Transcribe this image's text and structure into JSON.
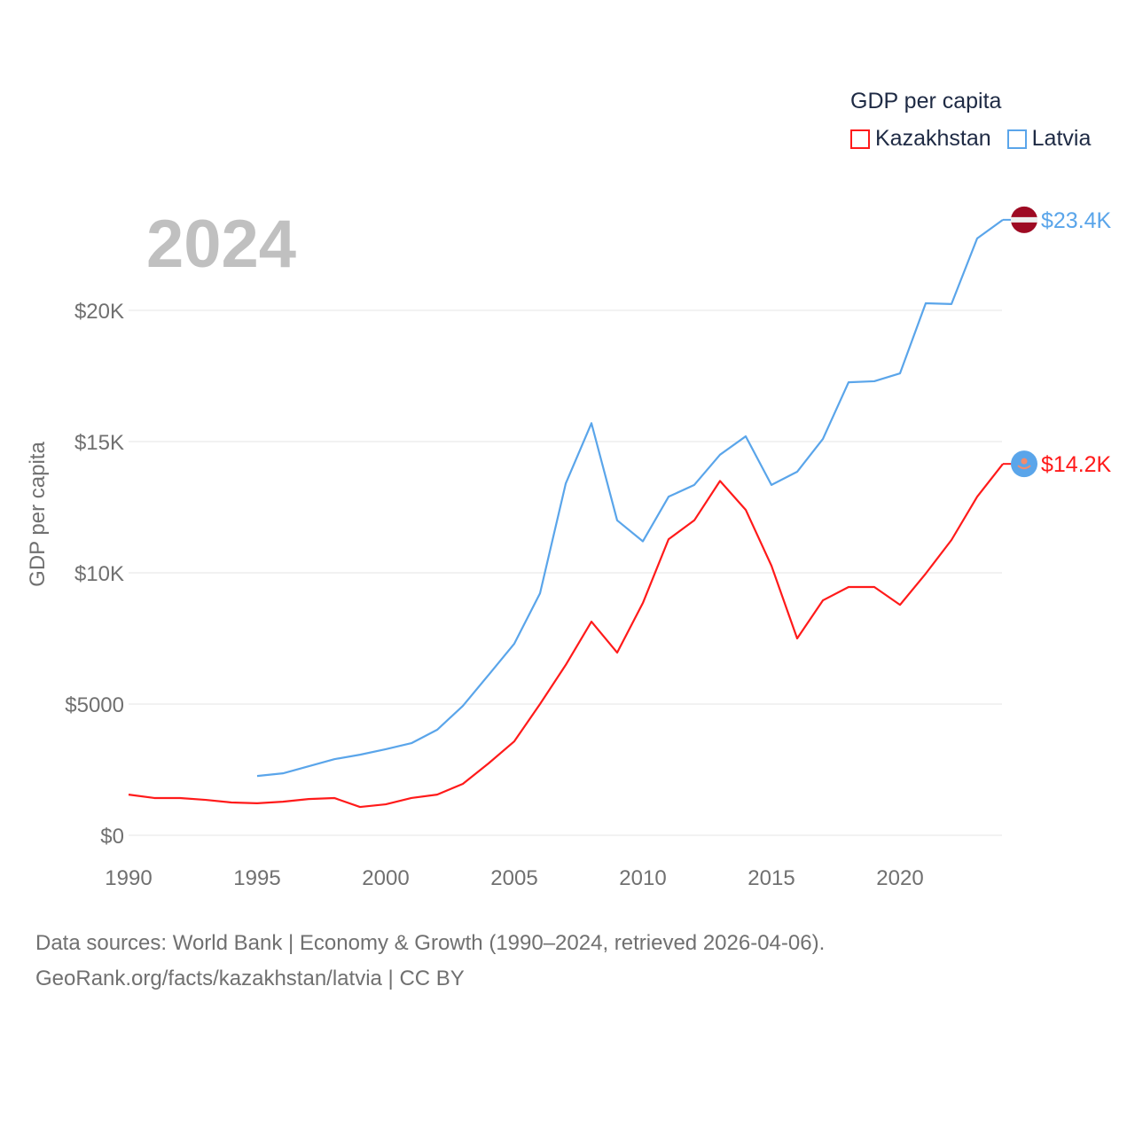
{
  "chart_data": {
    "type": "line",
    "legend_title": "GDP per capita",
    "ylabel": "GDP per capita",
    "xlabel": "",
    "year_label": "2024",
    "ylim": [
      0,
      25000
    ],
    "xlim": [
      1990,
      2024
    ],
    "grid": true,
    "legend_placement": "top-right",
    "y_ticks": [
      {
        "value": 0,
        "label": "$0"
      },
      {
        "value": 5000,
        "label": "$5000"
      },
      {
        "value": 10000,
        "label": "$10K"
      },
      {
        "value": 15000,
        "label": "$15K"
      },
      {
        "value": 20000,
        "label": "$20K"
      }
    ],
    "x_ticks": [
      {
        "value": 1990,
        "label": "1990"
      },
      {
        "value": 1995,
        "label": "1995"
      },
      {
        "value": 2000,
        "label": "2000"
      },
      {
        "value": 2005,
        "label": "2005"
      },
      {
        "value": 2010,
        "label": "2010"
      },
      {
        "value": 2015,
        "label": "2015"
      },
      {
        "value": 2020,
        "label": "2020"
      }
    ],
    "series": [
      {
        "name": "Kazakhstan",
        "color": "#ff1a1a",
        "end_label": "$14.2K",
        "flag_colors": [
          "#5aa5ea",
          "#f28b6e"
        ],
        "x": [
          1990,
          1991,
          1992,
          1993,
          1994,
          1995,
          1996,
          1997,
          1998,
          1999,
          2000,
          2001,
          2002,
          2003,
          2004,
          2005,
          2006,
          2007,
          2008,
          2009,
          2010,
          2011,
          2012,
          2013,
          2014,
          2015,
          2016,
          2017,
          2018,
          2019,
          2020,
          2021,
          2022,
          2023,
          2024
        ],
        "values": [
          1550,
          1420,
          1420,
          1350,
          1250,
          1220,
          1280,
          1380,
          1420,
          1080,
          1180,
          1420,
          1550,
          1960,
          2740,
          3580,
          5000,
          6490,
          8140,
          6960,
          8850,
          11280,
          12000,
          13500,
          12400,
          10270,
          7500,
          8950,
          9460,
          9460,
          8780,
          9970,
          11250,
          12900,
          14150
        ]
      },
      {
        "name": "Latvia",
        "color": "#5aa5ea",
        "end_label": "$23.4K",
        "flag_colors": [
          "#9e0a23",
          "#eeeeee"
        ],
        "x": [
          1995,
          1996,
          1997,
          1998,
          1999,
          2000,
          2001,
          2002,
          2003,
          2004,
          2005,
          2006,
          2007,
          2008,
          2009,
          2010,
          2011,
          2012,
          2013,
          2014,
          2015,
          2016,
          2017,
          2018,
          2019,
          2020,
          2021,
          2022,
          2023,
          2024
        ],
        "values": [
          2260,
          2360,
          2630,
          2900,
          3070,
          3280,
          3510,
          4020,
          4930,
          6110,
          7300,
          9220,
          13400,
          15700,
          12000,
          11200,
          12900,
          13350,
          14500,
          15200,
          13350,
          13850,
          15100,
          17260,
          17300,
          17600,
          20270,
          20240,
          22740,
          23450
        ]
      }
    ]
  },
  "footer": {
    "line1": "Data sources: World Bank | Economy & Growth (1990–2024, retrieved 2026-04-06).",
    "line2": "GeoRank.org/facts/kazakhstan/latvia | CC BY"
  }
}
